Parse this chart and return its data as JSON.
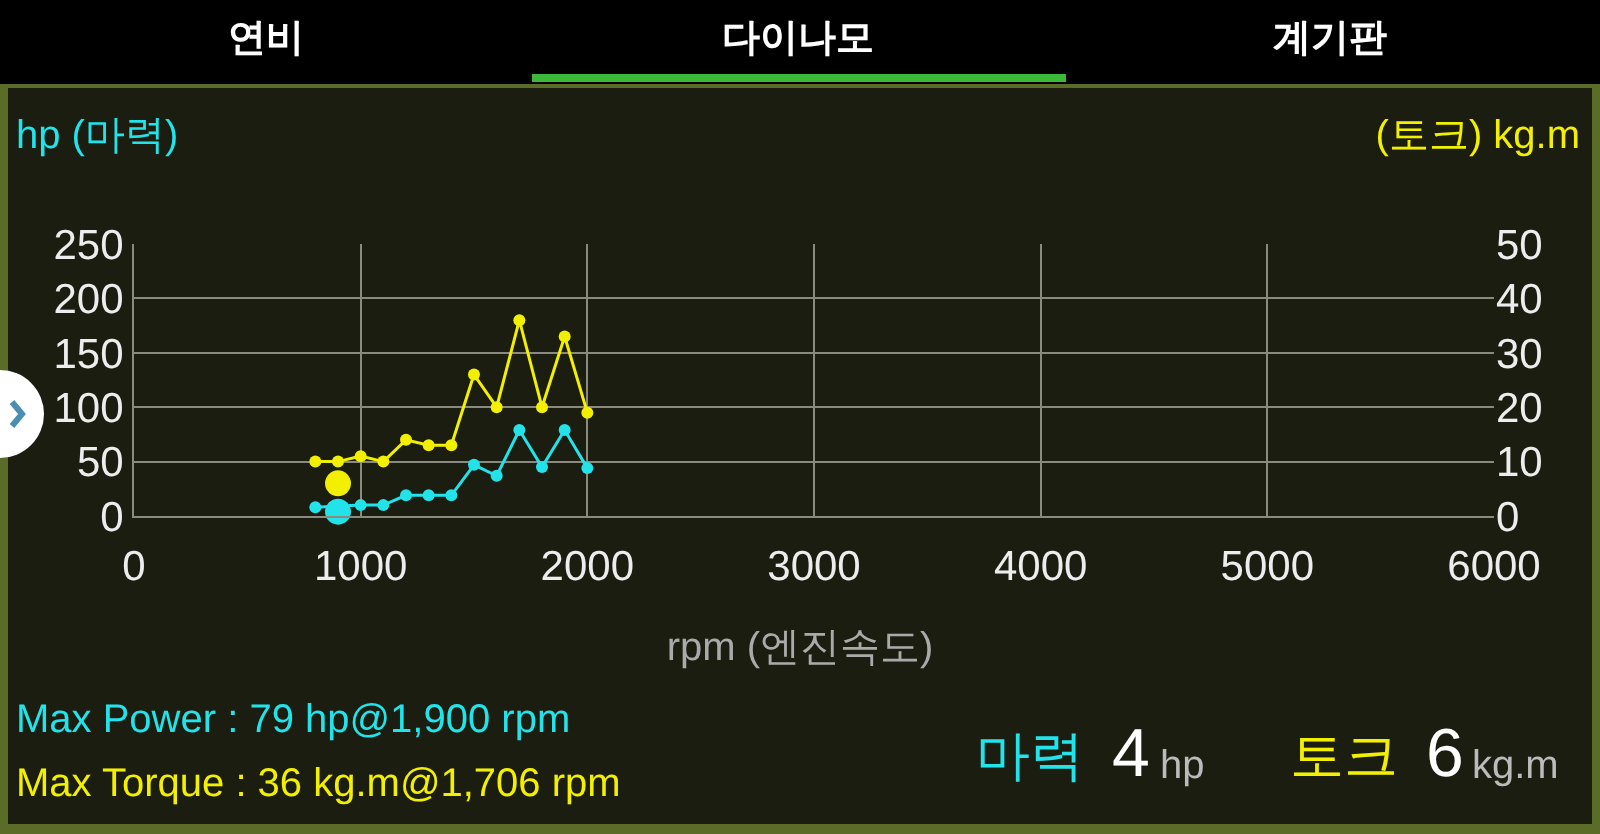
{
  "chart_data": {
    "type": "line",
    "ylabel": "hp (마력)",
    "y2label": "(토크) kg.m",
    "xlabel": "rpm (엔진속도)",
    "x": [
      800,
      900,
      1000,
      1100,
      1200,
      1300,
      1400,
      1500,
      1600,
      1700,
      1800,
      1900,
      2000
    ],
    "series": [
      {
        "color": "#22e3ea",
        "values": [
          8,
          null,
          10,
          10,
          19,
          19,
          19,
          47,
          37,
          79,
          45,
          79,
          44
        ]
      },
      {
        "color": "#f2f000",
        "axis": "y2",
        "values": [
          10,
          10,
          11,
          10,
          14,
          13,
          13,
          26,
          20,
          36,
          20,
          33,
          19
        ]
      },
      {
        "type": "scatter",
        "color": "#22e3ea",
        "x": [
          900
        ],
        "values": [
          4
        ]
      },
      {
        "type": "scatter",
        "color": "#f2f000",
        "axis": "y2",
        "x": [
          900
        ],
        "values": [
          6
        ]
      }
    ],
    "xlim": [
      0,
      6000
    ],
    "xticks": [
      0,
      1000,
      2000,
      3000,
      4000,
      5000,
      6000
    ],
    "ylim": [
      0,
      250
    ],
    "yticks": [
      0,
      50,
      100,
      150,
      200,
      250
    ],
    "y2lim": [
      0,
      50
    ],
    "y2ticks": [
      0,
      10,
      20,
      30,
      40,
      50
    ],
    "grid": true,
    "marker": "circle",
    "line_style": "solid",
    "annotations": [
      "연비",
      "다이나모",
      "계기판",
      "Max Power : 79 hp@1,900 rpm",
      "Max Torque : 36 kg.m@1,706 rpm",
      "마력",
      "4",
      "hp",
      "토크",
      "6",
      "kg.m"
    ]
  }
}
